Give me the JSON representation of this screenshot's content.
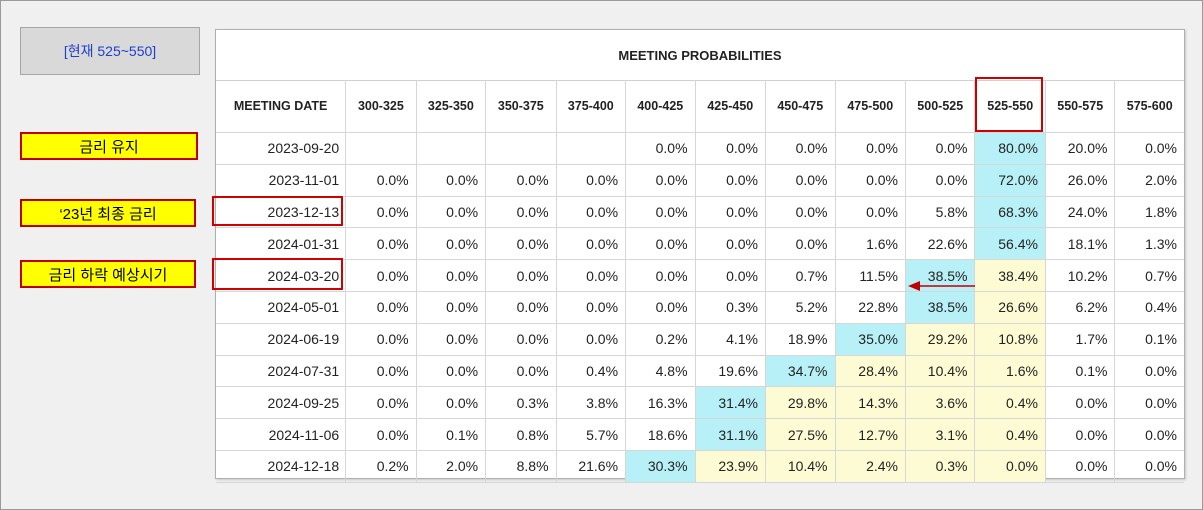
{
  "current_label": "[현재 525~550]",
  "annotations": {
    "hold": "금리 유지",
    "final_2023": "‘23년 최종 금리",
    "cut_expected": "금리 하락 예상시기"
  },
  "colors": {
    "max_cell": "#b8f0f8",
    "current_range_cell": "#fdfbd3",
    "annotation_fill": "#ffff00",
    "annotation_border": "#c00000",
    "header_text": "#1f3fd0"
  },
  "chart_data": {
    "type": "table",
    "title": "MEETING PROBABILITIES",
    "row_header": "MEETING DATE",
    "columns": [
      "300-325",
      "325-350",
      "350-375",
      "375-400",
      "400-425",
      "425-450",
      "450-475",
      "475-500",
      "500-525",
      "525-550",
      "550-575",
      "575-600"
    ],
    "rows": [
      {
        "date": "2023-09-20",
        "values": [
          "",
          "",
          "",
          "",
          "0.0%",
          "0.0%",
          "0.0%",
          "0.0%",
          "0.0%",
          "80.0%",
          "20.0%",
          "0.0%"
        ],
        "max_col": 9,
        "cur_col": 9
      },
      {
        "date": "2023-11-01",
        "values": [
          "0.0%",
          "0.0%",
          "0.0%",
          "0.0%",
          "0.0%",
          "0.0%",
          "0.0%",
          "0.0%",
          "0.0%",
          "72.0%",
          "26.0%",
          "2.0%"
        ],
        "max_col": 9,
        "cur_col": 9
      },
      {
        "date": "2023-12-13",
        "values": [
          "0.0%",
          "0.0%",
          "0.0%",
          "0.0%",
          "0.0%",
          "0.0%",
          "0.0%",
          "0.0%",
          "5.8%",
          "68.3%",
          "24.0%",
          "1.8%"
        ],
        "max_col": 9,
        "cur_col": 9
      },
      {
        "date": "2024-01-31",
        "values": [
          "0.0%",
          "0.0%",
          "0.0%",
          "0.0%",
          "0.0%",
          "0.0%",
          "0.0%",
          "1.6%",
          "22.6%",
          "56.4%",
          "18.1%",
          "1.3%"
        ],
        "max_col": 9,
        "cur_col": 9
      },
      {
        "date": "2024-03-20",
        "values": [
          "0.0%",
          "0.0%",
          "0.0%",
          "0.0%",
          "0.0%",
          "0.0%",
          "0.7%",
          "11.5%",
          "38.5%",
          "38.4%",
          "10.2%",
          "0.7%"
        ],
        "max_col": 8,
        "cur_col": 9
      },
      {
        "date": "2024-05-01",
        "values": [
          "0.0%",
          "0.0%",
          "0.0%",
          "0.0%",
          "0.0%",
          "0.3%",
          "5.2%",
          "22.8%",
          "38.5%",
          "26.6%",
          "6.2%",
          "0.4%"
        ],
        "max_col": 8,
        "cur_col": 9
      },
      {
        "date": "2024-06-19",
        "values": [
          "0.0%",
          "0.0%",
          "0.0%",
          "0.0%",
          "0.2%",
          "4.1%",
          "18.9%",
          "35.0%",
          "29.2%",
          "10.8%",
          "1.7%",
          "0.1%"
        ],
        "max_col": 7,
        "cur_col": 9
      },
      {
        "date": "2024-07-31",
        "values": [
          "0.0%",
          "0.0%",
          "0.0%",
          "0.4%",
          "4.8%",
          "19.6%",
          "34.7%",
          "28.4%",
          "10.4%",
          "1.6%",
          "0.1%",
          "0.0%"
        ],
        "max_col": 6,
        "cur_col": 9
      },
      {
        "date": "2024-09-25",
        "values": [
          "0.0%",
          "0.0%",
          "0.3%",
          "3.8%",
          "16.3%",
          "31.4%",
          "29.8%",
          "14.3%",
          "3.6%",
          "0.4%",
          "0.0%",
          "0.0%"
        ],
        "max_col": 5,
        "cur_col": 9
      },
      {
        "date": "2024-11-06",
        "values": [
          "0.0%",
          "0.1%",
          "0.8%",
          "5.7%",
          "18.6%",
          "31.1%",
          "27.5%",
          "12.7%",
          "3.1%",
          "0.4%",
          "0.0%",
          "0.0%"
        ],
        "max_col": 5,
        "cur_col": 9
      },
      {
        "date": "2024-12-18",
        "values": [
          "0.2%",
          "2.0%",
          "8.8%",
          "21.6%",
          "30.3%",
          "23.9%",
          "10.4%",
          "2.4%",
          "0.3%",
          "0.0%",
          "0.0%",
          "0.0%"
        ],
        "max_col": 4,
        "cur_col": 9
      }
    ]
  }
}
